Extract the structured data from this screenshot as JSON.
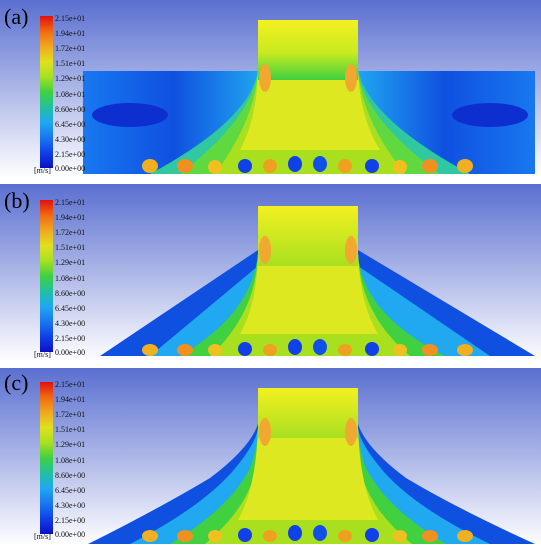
{
  "panels": [
    {
      "label": "(a)",
      "shape": "rectangular"
    },
    {
      "label": "(b)",
      "shape": "trapezoidal"
    },
    {
      "label": "(c)",
      "shape": "curved"
    }
  ],
  "legend": {
    "unit": "[m/s]",
    "ticks": [
      "2.15e+01",
      "1.94e+01",
      "1.72e+01",
      "1.51e+01",
      "1.29e+01",
      "1.08e+01",
      "8.60e+00",
      "6.45e+00",
      "4.30e+00",
      "2.15e+00",
      "0.00e+00"
    ],
    "colors_top_to_bottom": [
      "#e01010",
      "#f06a10",
      "#f0a820",
      "#e0e020",
      "#a8e020",
      "#40d040",
      "#20c0a0",
      "#20a8f0",
      "#1878f0",
      "#1040e8",
      "#0a10c8"
    ]
  },
  "colors": {
    "background_top": "#5a6fd0",
    "background_bottom": "#ffffff",
    "jet_core": "#f4f020",
    "outer_flow": "#1860e0"
  }
}
